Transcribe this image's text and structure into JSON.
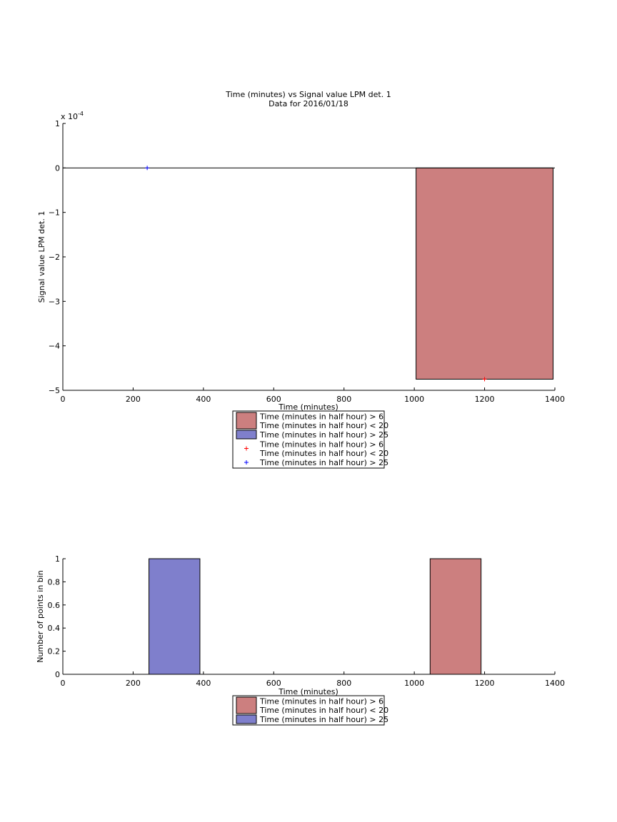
{
  "chart_data": [
    {
      "type": "bar",
      "title": "Time (minutes) vs Signal value LPM det. 1",
      "subtitle": "Data for 2016/01/18",
      "xlabel": "Time (minutes)",
      "ylabel": "Signal value LPM det. 1",
      "y_exponent": "x 10",
      "y_exponent_power": "-4",
      "xlim": [
        0,
        1400
      ],
      "ylim": [
        -5,
        1
      ],
      "y_scale_factor": 0.0001,
      "xticks": [
        0,
        200,
        400,
        600,
        800,
        1000,
        1200,
        1400
      ],
      "yticks": [
        -5,
        -4,
        -3,
        -2,
        -1,
        0,
        1
      ],
      "grid": false,
      "legend_position": "bottom-outside",
      "bars": [
        {
          "series": "Time (minutes in half hour) > 6 Time (minutes in half hour) < 20",
          "x_start": 1005,
          "x_end": 1395,
          "y_start": 0,
          "y_end": -4.75,
          "color": "#cc7f7f"
        }
      ],
      "points": [
        {
          "series": "Time (minutes in half hour) > 6 Time (minutes in half hour) < 20",
          "x": 1200,
          "y": -4.75,
          "marker": "+",
          "color": "#ff0000"
        },
        {
          "series": "Time (minutes in half hour) > 25",
          "x": 240,
          "y": 0,
          "marker": "+",
          "color": "#0000ff"
        }
      ],
      "legend": [
        {
          "lines": [
            "Time (minutes in half hour) > 6",
            "Time (minutes in half hour) < 20"
          ],
          "kind": "patch",
          "color": "#cc7f7f"
        },
        {
          "lines": [
            "Time (minutes in half hour) > 25"
          ],
          "kind": "patch",
          "color": "#7f7fcc"
        },
        {
          "lines": [
            "Time (minutes in half hour) > 6",
            "Time (minutes in half hour) < 20"
          ],
          "kind": "marker",
          "color": "#ff0000"
        },
        {
          "lines": [
            "Time (minutes in half hour) > 25"
          ],
          "kind": "marker",
          "color": "#0000ff"
        }
      ]
    },
    {
      "type": "bar",
      "title": "",
      "xlabel": "Time (minutes)",
      "ylabel": "Number of points in bin",
      "xlim": [
        0,
        1400
      ],
      "ylim": [
        0,
        1
      ],
      "xticks": [
        0,
        200,
        400,
        600,
        800,
        1000,
        1200,
        1400
      ],
      "yticks": [
        0,
        0.2,
        0.4,
        0.6,
        0.8,
        1
      ],
      "ytick_labels": [
        "0",
        "0.2",
        "0.4",
        "0.6",
        "0.8",
        "1"
      ],
      "grid": false,
      "legend_position": "bottom-outside",
      "bars": [
        {
          "series": "Time (minutes in half hour) > 25",
          "x_start": 245,
          "x_end": 390,
          "y_start": 0,
          "y_end": 1,
          "color": "#7f7fcc"
        },
        {
          "series": "Time (minutes in half hour) > 6 Time (minutes in half hour) < 20",
          "x_start": 1045,
          "x_end": 1190,
          "y_start": 0,
          "y_end": 1,
          "color": "#cc7f7f"
        }
      ],
      "legend": [
        {
          "lines": [
            "Time (minutes in half hour) > 6",
            "Time (minutes in half hour) < 20"
          ],
          "kind": "patch",
          "color": "#cc7f7f"
        },
        {
          "lines": [
            "Time (minutes in half hour) > 25"
          ],
          "kind": "patch",
          "color": "#7f7fcc"
        }
      ]
    }
  ]
}
